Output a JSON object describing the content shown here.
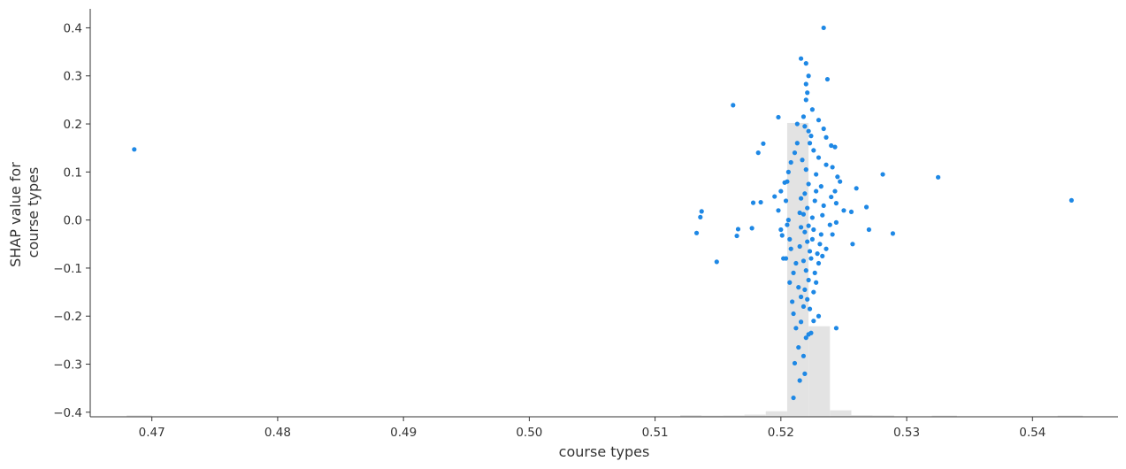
{
  "chart_data": {
    "type": "scatter",
    "title": "",
    "xlabel": "course types",
    "ylabel_lines": [
      "SHAP value for",
      "course types"
    ],
    "xlim": [
      0.4651,
      0.5468
    ],
    "ylim": [
      -0.4095,
      0.4395
    ],
    "x_ticks": [
      0.47,
      0.48,
      0.49,
      0.5,
      0.51,
      0.52,
      0.53,
      0.54
    ],
    "x_tick_labels": [
      "0.47",
      "0.48",
      "0.49",
      "0.50",
      "0.51",
      "0.52",
      "0.53",
      "0.54"
    ],
    "y_ticks": [
      0.4,
      0.3,
      0.2,
      0.1,
      0.0,
      -0.1,
      -0.2,
      -0.3,
      -0.4
    ],
    "y_tick_labels": [
      "0.4",
      "0.3",
      "0.2",
      "0.1",
      "0.0",
      "−0.1",
      "−0.2",
      "−0.3",
      "−0.4"
    ],
    "grid": false,
    "point_color": "#1E88E5",
    "histogram_color": "#E3E3E3",
    "histogram": {
      "bins": [
        {
          "x0": 0.468,
          "x1": 0.47,
          "y": -0.4065
        },
        {
          "x0": 0.512,
          "x1": 0.5137,
          "y": -0.406
        },
        {
          "x0": 0.5137,
          "x1": 0.5154,
          "y": -0.407
        },
        {
          "x0": 0.5154,
          "x1": 0.5171,
          "y": -0.4065
        },
        {
          "x0": 0.5171,
          "x1": 0.5188,
          "y": -0.405
        },
        {
          "x0": 0.5188,
          "x1": 0.5205,
          "y": -0.398
        },
        {
          "x0": 0.5205,
          "x1": 0.5222,
          "y": 0.202
        },
        {
          "x0": 0.5222,
          "x1": 0.5239,
          "y": -0.221
        },
        {
          "x0": 0.5239,
          "x1": 0.5256,
          "y": -0.396
        },
        {
          "x0": 0.5256,
          "x1": 0.5273,
          "y": -0.406
        },
        {
          "x0": 0.5273,
          "x1": 0.529,
          "y": -0.4065
        },
        {
          "x0": 0.532,
          "x1": 0.534,
          "y": -0.407
        },
        {
          "x0": 0.542,
          "x1": 0.544,
          "y": -0.407
        }
      ]
    },
    "points": [
      [
        0.4686,
        0.147
      ],
      [
        0.5162,
        0.239
      ],
      [
        0.5137,
        0.018
      ],
      [
        0.5136,
        0.006
      ],
      [
        0.5133,
        -0.027
      ],
      [
        0.5149,
        -0.087
      ],
      [
        0.5166,
        -0.019
      ],
      [
        0.5165,
        -0.033
      ],
      [
        0.5177,
        -0.017
      ],
      [
        0.5178,
        0.036
      ],
      [
        0.5182,
        0.14
      ],
      [
        0.5186,
        0.159
      ],
      [
        0.5184,
        0.037
      ],
      [
        0.5195,
        0.049
      ],
      [
        0.5198,
        0.214
      ],
      [
        0.52,
        0.06
      ],
      [
        0.5203,
        0.078
      ],
      [
        0.5198,
        0.02
      ],
      [
        0.52,
        -0.02
      ],
      [
        0.5201,
        -0.032
      ],
      [
        0.5202,
        -0.08
      ],
      [
        0.5204,
        -0.08
      ],
      [
        0.5207,
        -0.13
      ],
      [
        0.5209,
        -0.17
      ],
      [
        0.521,
        -0.195
      ],
      [
        0.5212,
        -0.225
      ],
      [
        0.5214,
        -0.265
      ],
      [
        0.5211,
        -0.298
      ],
      [
        0.5215,
        -0.334
      ],
      [
        0.521,
        -0.37
      ],
      [
        0.5218,
        -0.283
      ],
      [
        0.5219,
        -0.32
      ],
      [
        0.522,
        -0.245
      ],
      [
        0.5216,
        -0.212
      ],
      [
        0.5222,
        -0.238
      ],
      [
        0.5224,
        -0.235
      ],
      [
        0.5226,
        -0.21
      ],
      [
        0.523,
        -0.2
      ],
      [
        0.5244,
        -0.225
      ],
      [
        0.5216,
        0.336
      ],
      [
        0.522,
        0.326
      ],
      [
        0.5222,
        0.3
      ],
      [
        0.522,
        0.283
      ],
      [
        0.5237,
        0.293
      ],
      [
        0.5234,
        0.4
      ],
      [
        0.5225,
        0.23
      ],
      [
        0.523,
        0.208
      ],
      [
        0.5234,
        0.19
      ],
      [
        0.5236,
        0.172
      ],
      [
        0.524,
        0.155
      ],
      [
        0.5243,
        0.152
      ],
      [
        0.523,
        0.13
      ],
      [
        0.5236,
        0.115
      ],
      [
        0.5241,
        0.11
      ],
      [
        0.5245,
        0.09
      ],
      [
        0.5247,
        0.08
      ],
      [
        0.5243,
        0.06
      ],
      [
        0.524,
        0.048
      ],
      [
        0.5244,
        0.035
      ],
      [
        0.525,
        0.02
      ],
      [
        0.5239,
        -0.01
      ],
      [
        0.5241,
        -0.03
      ],
      [
        0.5236,
        -0.06
      ],
      [
        0.5233,
        -0.075
      ],
      [
        0.523,
        -0.09
      ],
      [
        0.5244,
        -0.005
      ],
      [
        0.5257,
        -0.05
      ],
      [
        0.5256,
        0.017
      ],
      [
        0.526,
        0.066
      ],
      [
        0.5268,
        0.027
      ],
      [
        0.527,
        -0.02
      ],
      [
        0.5281,
        0.095
      ],
      [
        0.5289,
        -0.028
      ],
      [
        0.5325,
        0.089
      ],
      [
        0.5431,
        0.041
      ],
      [
        0.5213,
        0.16
      ],
      [
        0.5211,
        0.14
      ],
      [
        0.5208,
        0.12
      ],
      [
        0.5206,
        0.1
      ],
      [
        0.5205,
        0.08
      ],
      [
        0.5204,
        0.04
      ],
      [
        0.5206,
        0.0
      ],
      [
        0.5205,
        -0.01
      ],
      [
        0.5207,
        -0.04
      ],
      [
        0.5208,
        -0.06
      ],
      [
        0.521,
        -0.11
      ],
      [
        0.5212,
        -0.09
      ],
      [
        0.5214,
        -0.14
      ],
      [
        0.5216,
        -0.16
      ],
      [
        0.5218,
        -0.18
      ],
      [
        0.5226,
        -0.15
      ],
      [
        0.5228,
        -0.13
      ],
      [
        0.5227,
        -0.11
      ],
      [
        0.5229,
        -0.07
      ],
      [
        0.5231,
        -0.05
      ],
      [
        0.5232,
        -0.03
      ],
      [
        0.5233,
        0.01
      ],
      [
        0.5234,
        0.03
      ],
      [
        0.5232,
        0.07
      ],
      [
        0.5228,
        0.095
      ],
      [
        0.5226,
        0.145
      ],
      [
        0.5224,
        0.175
      ],
      [
        0.5213,
        0.2
      ],
      [
        0.5218,
        0.215
      ],
      [
        0.522,
        0.25
      ],
      [
        0.5221,
        0.265
      ],
      [
        0.5219,
        0.195
      ],
      [
        0.5222,
        0.185
      ],
      [
        0.5223,
        0.16
      ],
      [
        0.5217,
        0.125
      ],
      [
        0.522,
        0.105
      ],
      [
        0.5222,
        0.075
      ],
      [
        0.5219,
        0.055
      ],
      [
        0.5221,
        0.025
      ],
      [
        0.5218,
        0.012
      ],
      [
        0.5222,
        -0.012
      ],
      [
        0.5219,
        -0.025
      ],
      [
        0.5221,
        -0.045
      ],
      [
        0.5223,
        -0.065
      ],
      [
        0.5218,
        -0.085
      ],
      [
        0.522,
        -0.105
      ],
      [
        0.5222,
        -0.125
      ],
      [
        0.5219,
        -0.145
      ],
      [
        0.5221,
        -0.165
      ],
      [
        0.5223,
        -0.185
      ],
      [
        0.5216,
        0.045
      ],
      [
        0.5215,
        0.015
      ],
      [
        0.5216,
        -0.015
      ],
      [
        0.5215,
        -0.055
      ],
      [
        0.5225,
        0.005
      ],
      [
        0.5226,
        -0.02
      ],
      [
        0.5227,
        0.04
      ],
      [
        0.5228,
        0.06
      ],
      [
        0.5225,
        -0.04
      ],
      [
        0.5224,
        -0.08
      ]
    ]
  }
}
